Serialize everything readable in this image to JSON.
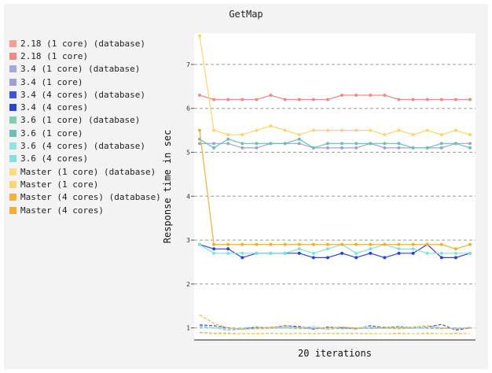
{
  "chart_data": {
    "type": "line",
    "title": "GetMap",
    "xlabel": "20 iterations",
    "ylabel": "Response time in sec",
    "ylim": [
      0.8,
      7.7
    ],
    "yticks": [
      1,
      2,
      3,
      4,
      5,
      6,
      7
    ],
    "grid": "horizontal dashed",
    "legend_position": "left",
    "x": [
      1,
      2,
      3,
      4,
      5,
      6,
      7,
      8,
      9,
      10,
      11,
      12,
      13,
      14,
      15,
      16,
      17,
      18,
      19,
      20
    ],
    "series": [
      {
        "name": "2.18 (1 core) (database)",
        "color": "#f4a09a",
        "style": "dashed",
        "markers": false,
        "values": [
          0.9,
          0.88,
          0.88,
          0.87,
          0.87,
          0.88,
          0.87,
          0.88,
          0.87,
          0.88,
          0.87,
          0.88,
          0.87,
          0.87,
          0.88,
          0.87,
          0.88,
          0.87,
          0.88,
          0.87
        ]
      },
      {
        "name": "2.18 (1 core)",
        "color": "#f08a84",
        "style": "solid",
        "markers": true,
        "values": [
          6.3,
          6.2,
          6.2,
          6.2,
          6.2,
          6.3,
          6.2,
          6.2,
          6.2,
          6.2,
          6.3,
          6.3,
          6.3,
          6.3,
          6.2,
          6.2,
          6.2,
          6.2,
          6.2,
          6.2
        ]
      },
      {
        "name": "3.4 (1 core) (database)",
        "color": "#a3aadc",
        "style": "dashed",
        "markers": false,
        "values": [
          1.05,
          1.0,
          0.95,
          0.97,
          1.0,
          1.02,
          1.0,
          1.03,
          1.0,
          0.97,
          1.0,
          0.98,
          1.0,
          1.02,
          1.0,
          0.99,
          1.01,
          1.0,
          0.98,
          1.0
        ]
      },
      {
        "name": "3.4 (1 core)",
        "color": "#9da2d6",
        "style": "solid",
        "markers": true,
        "values": [
          5.2,
          5.2,
          5.2,
          5.1,
          5.1,
          5.2,
          5.2,
          5.2,
          5.1,
          5.1,
          5.1,
          5.1,
          5.2,
          5.1,
          5.1,
          5.1,
          5.1,
          5.1,
          5.2,
          5.2
        ]
      },
      {
        "name": "3.4 (4 cores) (database)",
        "color": "#3d55d6",
        "style": "dashed",
        "markers": false,
        "values": [
          1.07,
          1.05,
          1.0,
          0.97,
          1.02,
          1.0,
          1.05,
          1.03,
          0.97,
          1.02,
          1.0,
          0.98,
          1.05,
          1.0,
          1.03,
          1.0,
          1.02,
          1.08,
          0.95,
          1.0
        ]
      },
      {
        "name": "3.4 (4 cores)",
        "color": "#2746cf",
        "style": "solid",
        "markers": true,
        "values": [
          2.9,
          2.8,
          2.8,
          2.6,
          2.7,
          2.7,
          2.7,
          2.7,
          2.6,
          2.6,
          2.7,
          2.6,
          2.7,
          2.6,
          2.7,
          2.7,
          2.9,
          2.6,
          2.6,
          2.7
        ]
      },
      {
        "name": "3.6 (1 core) (database)",
        "color": "#7ecbb6",
        "style": "dashed",
        "markers": false,
        "values": [
          1.0,
          1.0,
          0.98,
          0.97,
          0.98,
          0.99,
          1.0,
          0.98,
          0.99,
          1.0,
          0.98,
          0.99,
          1.0,
          0.99,
          0.98,
          1.0,
          0.99,
          0.98,
          1.0,
          0.99
        ]
      },
      {
        "name": "3.6 (1 core)",
        "color": "#6cbfb3",
        "style": "solid",
        "markers": true,
        "values": [
          5.3,
          5.1,
          5.3,
          5.2,
          5.2,
          5.2,
          5.2,
          5.3,
          5.1,
          5.2,
          5.2,
          5.2,
          5.2,
          5.2,
          5.2,
          5.1,
          5.1,
          5.2,
          5.2,
          5.1
        ]
      },
      {
        "name": "3.6 (4 cores) (database)",
        "color": "#93e3e3",
        "style": "dashed",
        "markers": false,
        "values": [
          1.02,
          1.0,
          0.98,
          1.0,
          1.03,
          1.0,
          1.02,
          1.0,
          1.04,
          0.98,
          1.02,
          1.0,
          1.03,
          0.99,
          1.02,
          1.0,
          1.02,
          1.0,
          0.98,
          1.02
        ]
      },
      {
        "name": "3.6 (4 cores)",
        "color": "#7fe1e1",
        "style": "solid",
        "markers": true,
        "values": [
          2.9,
          2.7,
          2.7,
          2.7,
          2.7,
          2.7,
          2.7,
          2.8,
          2.7,
          2.8,
          2.9,
          2.7,
          2.8,
          2.9,
          2.8,
          2.8,
          2.7,
          2.7,
          2.7,
          2.7
        ]
      },
      {
        "name": "Master (1 core) (database)",
        "color": "#fddc7d",
        "style": "dashed",
        "markers": false,
        "values": [
          0.88,
          0.86,
          0.86,
          0.86,
          0.86,
          0.87,
          0.86,
          0.87,
          0.86,
          0.87,
          0.86,
          0.87,
          0.86,
          0.87,
          0.86,
          0.87,
          0.86,
          0.87,
          0.86,
          0.87
        ]
      },
      {
        "name": "Master (1 core)",
        "color": "#fdd56a",
        "style": "solid",
        "markers": true,
        "values": [
          7.65,
          5.5,
          5.4,
          5.4,
          5.5,
          5.6,
          5.5,
          5.4,
          5.5,
          5.5,
          5.5,
          5.5,
          5.5,
          5.4,
          5.5,
          5.4,
          5.5,
          5.4,
          5.5,
          5.4
        ]
      },
      {
        "name": "Master (4 cores) (database)",
        "color": "#f6b13a",
        "style": "dashed",
        "markers": false,
        "values": [
          1.3,
          1.1,
          1.0,
          0.97,
          1.0,
          1.0,
          1.05,
          1.0,
          0.98,
          1.0,
          1.02,
          1.0,
          0.98,
          1.0,
          1.0,
          1.02,
          1.05,
          1.0,
          0.98,
          1.0
        ]
      },
      {
        "name": "Master (4 cores)",
        "color": "#f7ae2e",
        "style": "solid",
        "markers": true,
        "values": [
          5.5,
          2.9,
          2.9,
          2.9,
          2.9,
          2.9,
          2.9,
          2.9,
          2.9,
          2.9,
          2.9,
          2.9,
          2.9,
          2.9,
          2.9,
          2.9,
          2.9,
          2.9,
          2.8,
          2.9
        ]
      }
    ]
  }
}
